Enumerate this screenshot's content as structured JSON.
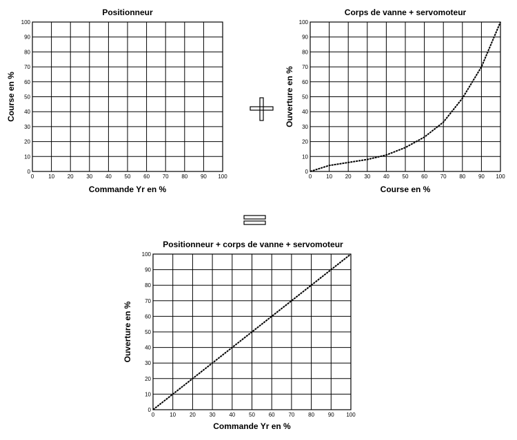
{
  "operators": {
    "plus": "+",
    "equals": "="
  },
  "chart_data": [
    {
      "type": "line",
      "title": "Positionneur",
      "xlabel": "Commande Yr en %",
      "ylabel": "Course en %",
      "xlim": [
        0,
        100
      ],
      "ylim": [
        0,
        100
      ],
      "xticks": [
        "0",
        "10",
        "20",
        "30",
        "40",
        "50",
        "60",
        "70",
        "80",
        "90",
        "100"
      ],
      "yticks": [
        "0",
        "10",
        "20",
        "30",
        "40",
        "50",
        "60",
        "70",
        "80",
        "90",
        "100"
      ],
      "grid": true,
      "series": []
    },
    {
      "type": "line",
      "title": "Corps de vanne + servomoteur",
      "xlabel": "Course en %",
      "ylabel": "Ouverture en %",
      "xlim": [
        0,
        100
      ],
      "ylim": [
        0,
        100
      ],
      "xticks": [
        "0",
        "10",
        "20",
        "30",
        "40",
        "50",
        "60",
        "70",
        "80",
        "90",
        "100"
      ],
      "yticks": [
        "0",
        "10",
        "20",
        "30",
        "40",
        "50",
        "60",
        "70",
        "80",
        "90",
        "100"
      ],
      "grid": true,
      "series": [
        {
          "x": [
            0,
            10,
            20,
            30,
            40,
            50,
            60,
            70,
            80,
            90,
            100
          ],
          "y": [
            0,
            4,
            6,
            8,
            11,
            16,
            23,
            33,
            49,
            70,
            100
          ]
        }
      ]
    },
    {
      "type": "line",
      "title": "Positionneur + corps de vanne + servomoteur",
      "xlabel": "Commande Yr en %",
      "ylabel": "Ouverture en %",
      "xlim": [
        0,
        100
      ],
      "ylim": [
        0,
        100
      ],
      "xticks": [
        "0",
        "10",
        "20",
        "30",
        "40",
        "50",
        "60",
        "70",
        "80",
        "90",
        "100"
      ],
      "yticks": [
        "0",
        "10",
        "20",
        "30",
        "40",
        "50",
        "60",
        "70",
        "80",
        "90",
        "100"
      ],
      "grid": true,
      "series": [
        {
          "x": [
            0,
            100
          ],
          "y": [
            0,
            100
          ]
        }
      ]
    }
  ]
}
